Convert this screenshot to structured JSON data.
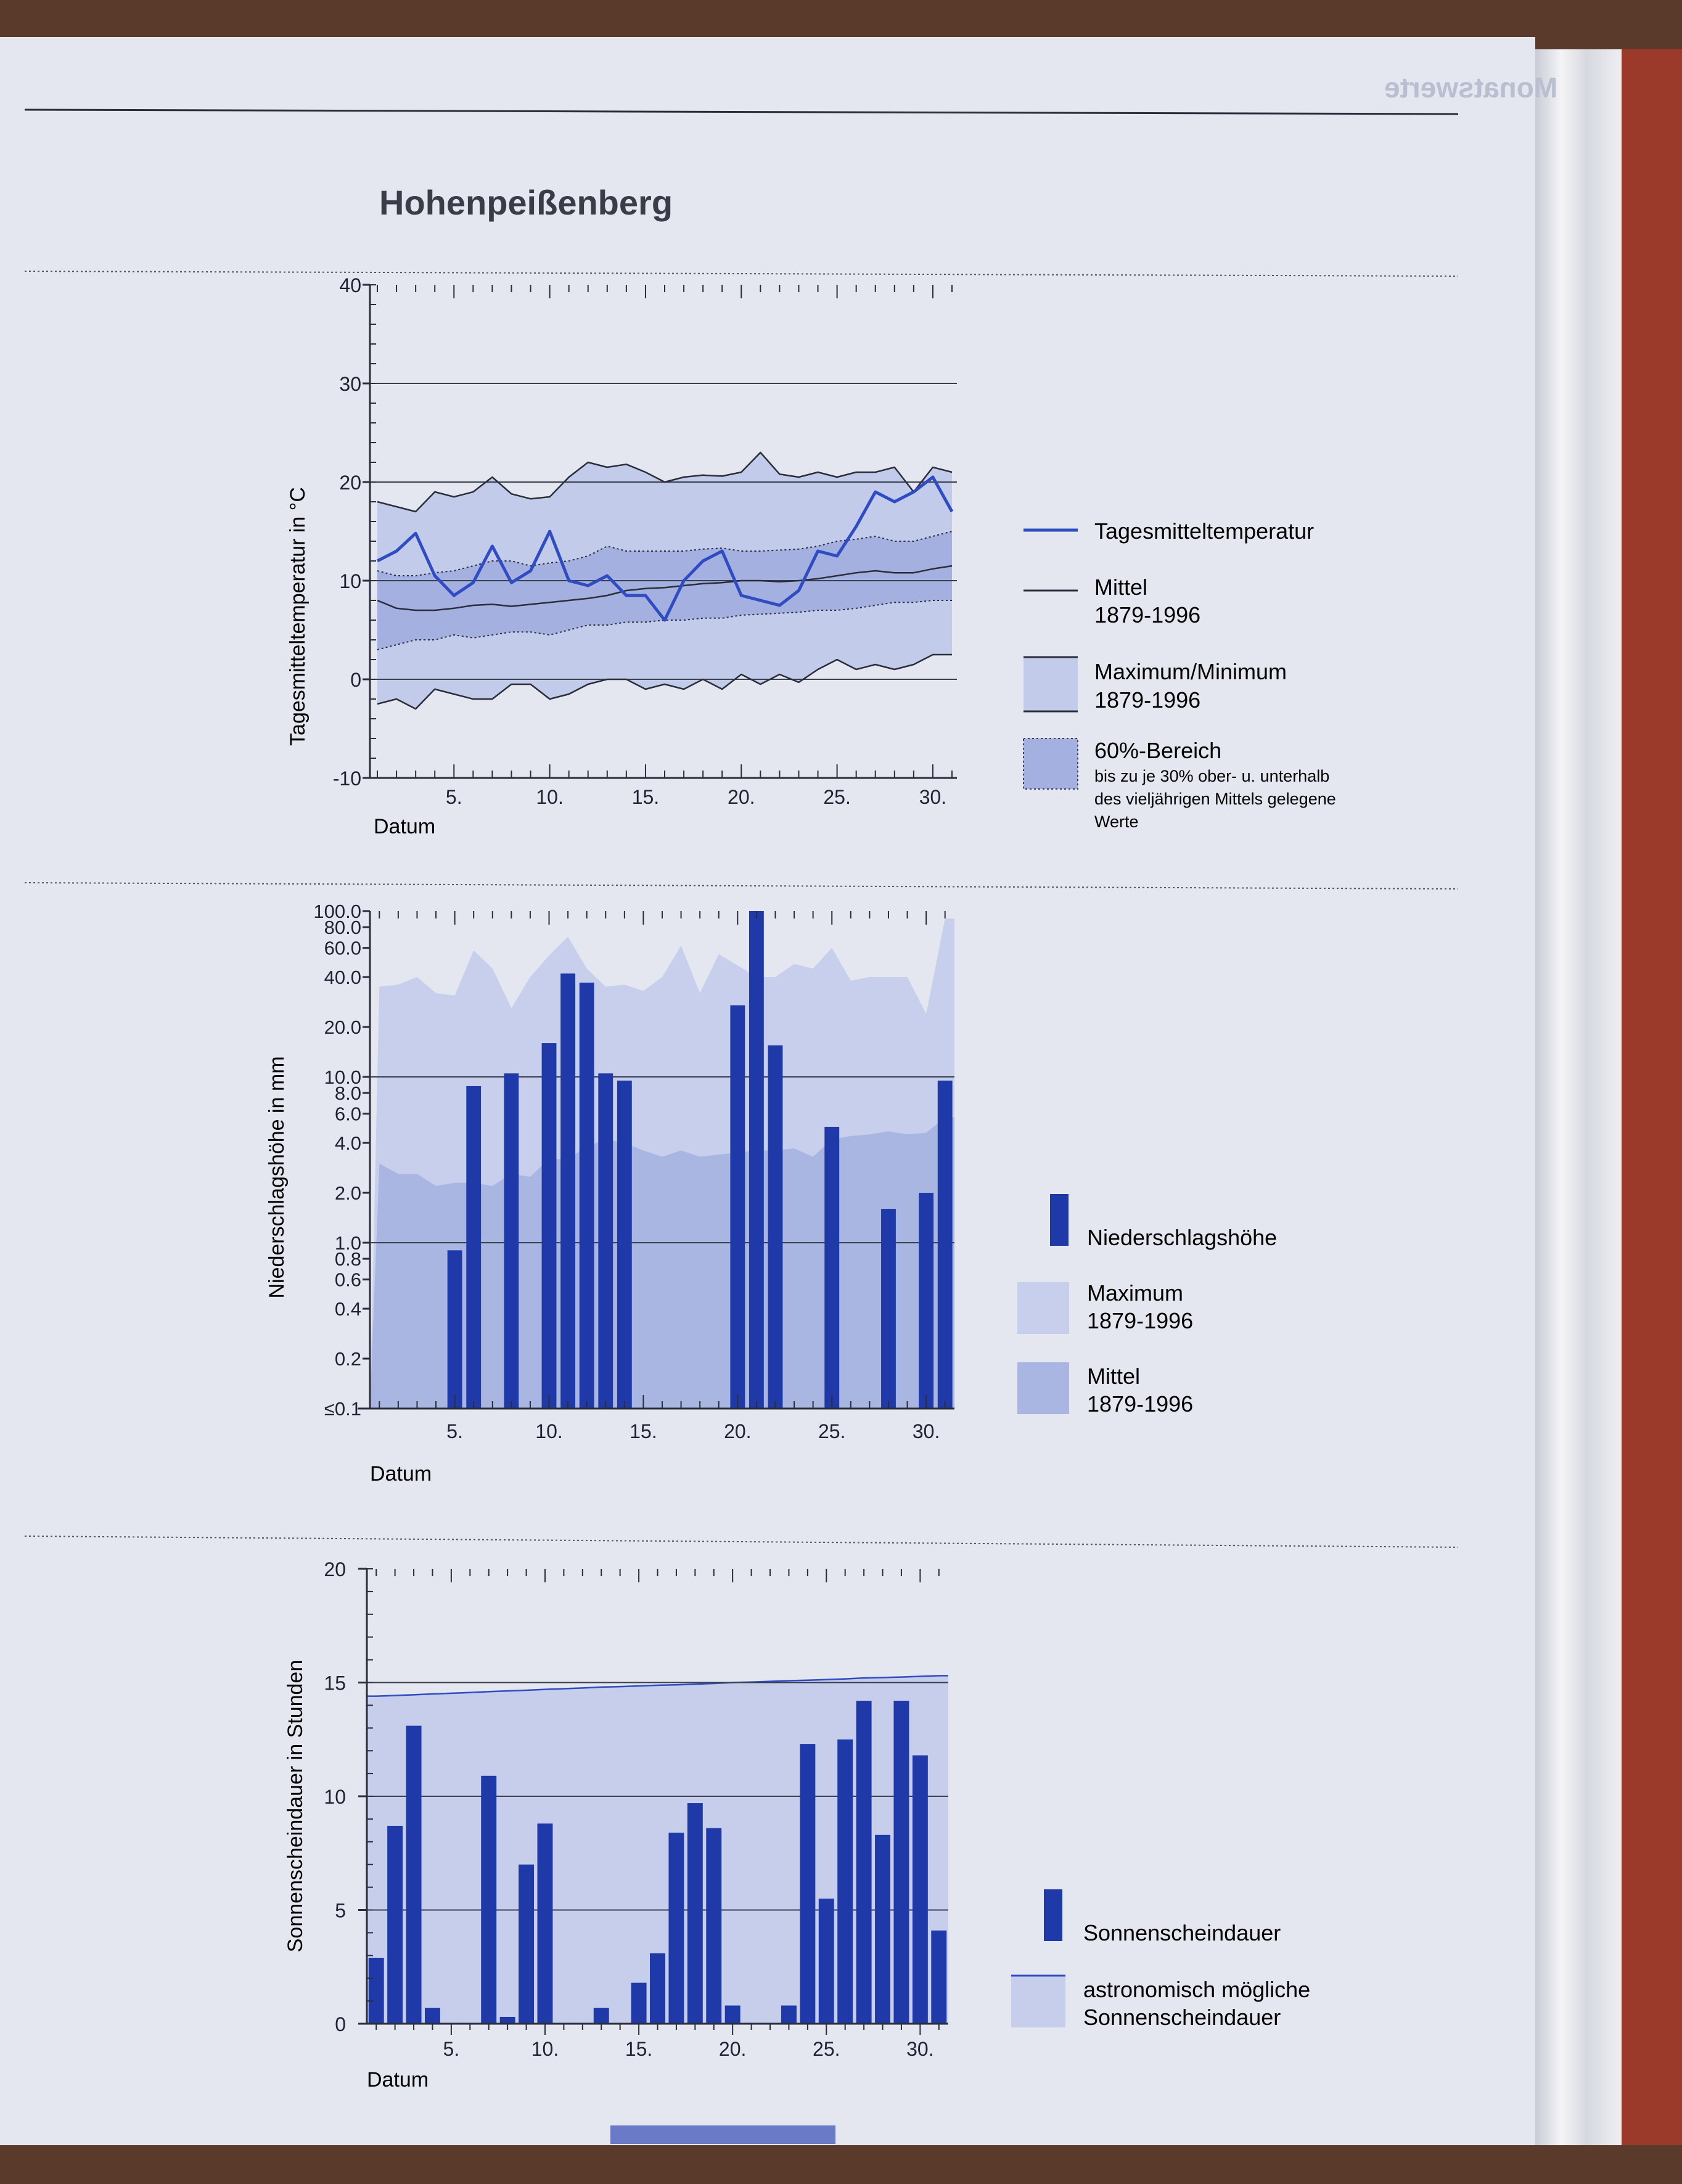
{
  "title": "Hohenpeißenberg",
  "header_tag": "Monatswerte",
  "colors": {
    "daily_line": "#2f4cc2",
    "band_max": "#c3cbea",
    "band_60": "#a4b1e0",
    "bar": "#1f3aa8",
    "precip_max": "#c8cfec",
    "precip_mean": "#a9b6e2",
    "sun_possible": "#c6ceec"
  },
  "temperature_chart": {
    "ylabel": "Tagesmitteltemperatur in °C",
    "xlabel": "Datum",
    "yticks": [
      "40",
      "30",
      "20",
      "10",
      "0",
      "-10"
    ],
    "xticks": [
      "5.",
      "10.",
      "15.",
      "20.",
      "25.",
      "30."
    ],
    "legend": {
      "daily": "Tagesmitteltemperatur",
      "mean": "Mittel",
      "mean_period": "1879-1996",
      "maxmin": "Maximum/Minimum",
      "maxmin_period": "1879-1996",
      "range60": "60%-Bereich",
      "range60_note1": "bis zu je 30% ober- u. unterhalb",
      "range60_note2": "des vieljährigen Mittels gelegene",
      "range60_note3": "Werte"
    }
  },
  "precipitation_chart": {
    "ylabel": "Niederschlagshöhe in mm",
    "xlabel": "Datum",
    "yticks": [
      "100.0",
      "80.0",
      "60.0",
      "40.0",
      "20.0",
      "10.0",
      "8.0",
      "6.0",
      "4.0",
      "2.0",
      "1.0",
      "0.8",
      "0.6",
      "0.4",
      "0.2",
      "≤0.1"
    ],
    "xticks": [
      "5.",
      "10.",
      "15.",
      "20.",
      "25.",
      "30."
    ],
    "legend": {
      "bar": "Niederschlagshöhe",
      "max": "Maximum",
      "max_period": "1879-1996",
      "mean": "Mittel",
      "mean_period": "1879-1996"
    }
  },
  "sunshine_chart": {
    "ylabel": "Sonnenscheindauer in Stunden",
    "xlabel": "Datum",
    "yticks": [
      "20",
      "15",
      "10",
      "5",
      "0"
    ],
    "xticks": [
      "5.",
      "10.",
      "15.",
      "20.",
      "25.",
      "30."
    ],
    "legend": {
      "bar": "Sonnenscheindauer",
      "possible1": "astronomisch mögliche",
      "possible2": "Sonnenscheindauer"
    }
  },
  "chart_data": [
    {
      "type": "line",
      "x": [
        1,
        2,
        3,
        4,
        5,
        6,
        7,
        8,
        9,
        10,
        11,
        12,
        13,
        14,
        15,
        16,
        17,
        18,
        19,
        20,
        21,
        22,
        23,
        24,
        25,
        26,
        27,
        28,
        29,
        30,
        31
      ],
      "ylim": [
        -10,
        40
      ],
      "series": [
        {
          "name": "Tagesmitteltemperatur",
          "values": [
            12,
            13,
            14.8,
            10.5,
            8.5,
            9.8,
            13.5,
            9.8,
            11,
            15,
            10,
            9.5,
            10.5,
            8.5,
            8.5,
            6,
            10,
            12,
            13,
            8.5,
            8,
            7.5,
            9,
            13,
            12.5,
            15.5,
            19,
            18,
            19,
            20.5,
            17
          ]
        },
        {
          "name": "Mittel 1879-1996",
          "values": [
            8,
            7.2,
            7,
            7,
            7.2,
            7.5,
            7.6,
            7.4,
            7.6,
            7.8,
            8,
            8.2,
            8.5,
            9,
            9.2,
            9.3,
            9.5,
            9.7,
            9.8,
            10,
            10,
            9.9,
            10,
            10.2,
            10.5,
            10.8,
            11,
            10.8,
            10.8,
            11.2,
            11.5
          ]
        },
        {
          "name": "Maximum 1879-1996",
          "values": [
            18,
            17.5,
            17,
            19,
            18.5,
            19,
            20.5,
            18.8,
            18.3,
            18.5,
            20.5,
            22,
            21.5,
            21.8,
            21,
            20,
            20.5,
            20.7,
            20.6,
            21,
            23,
            20.8,
            20.5,
            21,
            20.5,
            21,
            21,
            21.5,
            19,
            21.5,
            21
          ]
        },
        {
          "name": "Minimum 1879-1996",
          "values": [
            -2.5,
            -2,
            -3,
            -1,
            -1.5,
            -2,
            -2,
            -0.5,
            -0.5,
            -2,
            -1.5,
            -0.5,
            0,
            0,
            -1,
            -0.5,
            -1,
            0,
            -1,
            0.5,
            -0.5,
            0.5,
            -0.3,
            1,
            2,
            1,
            1.5,
            1,
            1.5,
            2.5,
            2.5
          ]
        },
        {
          "name": "60%-Bereich oben",
          "values": [
            11,
            10.5,
            10.5,
            10.8,
            11,
            11.5,
            12,
            12,
            11.5,
            11.8,
            12,
            12.5,
            13.5,
            13,
            13,
            13,
            13,
            13.2,
            13.3,
            13,
            13,
            13.1,
            13.2,
            13.5,
            14,
            14.2,
            14.5,
            14,
            14,
            14.5,
            15
          ]
        },
        {
          "name": "60%-Bereich unten",
          "values": [
            3,
            3.5,
            4,
            4,
            4.5,
            4.2,
            4.5,
            4.8,
            4.8,
            4.5,
            5,
            5.5,
            5.5,
            5.8,
            5.8,
            6,
            6,
            6.2,
            6.2,
            6.5,
            6.6,
            6.7,
            6.8,
            7,
            7,
            7.2,
            7.5,
            7.8,
            7.8,
            8,
            8
          ]
        }
      ]
    },
    {
      "type": "bar",
      "scale": "log",
      "x": [
        1,
        2,
        3,
        4,
        5,
        6,
        7,
        8,
        9,
        10,
        11,
        12,
        13,
        14,
        15,
        16,
        17,
        18,
        19,
        20,
        21,
        22,
        23,
        24,
        25,
        26,
        27,
        28,
        29,
        30,
        31
      ],
      "ylim": [
        0.1,
        100
      ],
      "series": [
        {
          "name": "Niederschlagshöhe",
          "values": [
            0.1,
            0.1,
            0.1,
            0.1,
            0.9,
            8.8,
            0.1,
            10.5,
            0.1,
            16,
            42,
            37,
            10.5,
            9.5,
            0.1,
            0.1,
            0.1,
            0.1,
            0.1,
            27,
            100,
            15.5,
            0.1,
            0.1,
            5,
            0.1,
            0.1,
            1.6,
            0.1,
            2,
            9.5
          ]
        },
        {
          "name": "Maximum 1879-1996",
          "values": [
            35,
            36,
            40,
            32,
            31,
            58,
            45,
            26,
            40,
            54,
            70,
            45,
            35,
            36,
            33,
            40,
            62,
            32,
            55,
            47,
            40,
            40,
            48,
            45,
            60,
            38,
            40,
            40,
            40,
            24,
            90
          ]
        },
        {
          "name": "Mittel 1879-1996",
          "values": [
            3,
            2.6,
            2.6,
            2.2,
            2.3,
            2.3,
            2.2,
            2.6,
            2.5,
            3.2,
            3.2,
            3.8,
            4.2,
            4,
            3.6,
            3.3,
            3.6,
            3.3,
            3.4,
            3.5,
            3.6,
            3.6,
            3.7,
            3.3,
            4.2,
            4.4,
            4.5,
            4.7,
            4.5,
            4.6,
            5.7
          ]
        }
      ]
    },
    {
      "type": "bar",
      "x": [
        1,
        2,
        3,
        4,
        5,
        6,
        7,
        8,
        9,
        10,
        11,
        12,
        13,
        14,
        15,
        16,
        17,
        18,
        19,
        20,
        21,
        22,
        23,
        24,
        25,
        26,
        27,
        28,
        29,
        30,
        31
      ],
      "ylim": [
        0,
        20
      ],
      "series": [
        {
          "name": "Sonnenscheindauer",
          "values": [
            2.9,
            8.7,
            13.1,
            0.7,
            0,
            0,
            10.9,
            0.3,
            7,
            8.8,
            0,
            0,
            0.7,
            0,
            1.8,
            3.1,
            8.4,
            9.7,
            8.6,
            0.8,
            0,
            0,
            0.8,
            12.3,
            5.5,
            12.5,
            14.2,
            8.3,
            14.2,
            11.8,
            4.1
          ]
        },
        {
          "name": "astronomisch mögliche Sonnenscheindauer",
          "values": [
            14.4,
            14.43,
            14.46,
            14.5,
            14.53,
            14.56,
            14.6,
            14.63,
            14.66,
            14.7,
            14.73,
            14.76,
            14.8,
            14.82,
            14.85,
            14.88,
            14.9,
            14.93,
            14.96,
            15,
            15.02,
            15.05,
            15.08,
            15.1,
            15.13,
            15.16,
            15.2,
            15.22,
            15.24,
            15.27,
            15.3
          ]
        }
      ]
    }
  ]
}
